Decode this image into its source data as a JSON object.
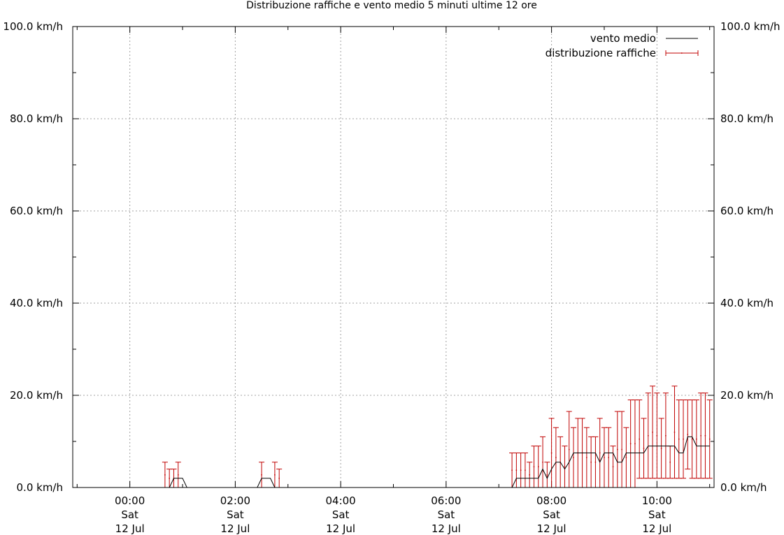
{
  "chart_data": {
    "type": "line",
    "title": "Distribuzione raffiche e vento medio 5 minuti ultime 12 ore",
    "x_unit": "minutes relative to Sat 12 Jul 00:00",
    "xlim": [
      -65,
      665
    ],
    "ylim": [
      0,
      100
    ],
    "grid": true,
    "legend_position": "top-right",
    "yticks": [
      {
        "value": 0,
        "label": "0.0 km/h"
      },
      {
        "value": 20,
        "label": "20.0 km/h"
      },
      {
        "value": 40,
        "label": "40.0 km/h"
      },
      {
        "value": 60,
        "label": "60.0 km/h"
      },
      {
        "value": 80,
        "label": "80.0 km/h"
      },
      {
        "value": 100,
        "label": "100.0 km/h"
      }
    ],
    "xticks": [
      {
        "value": 0,
        "time": "00:00",
        "day": "Sat",
        "date": "12 Jul"
      },
      {
        "value": 120,
        "time": "02:00",
        "day": "Sat",
        "date": "12 Jul"
      },
      {
        "value": 240,
        "time": "04:00",
        "day": "Sat",
        "date": "12 Jul"
      },
      {
        "value": 360,
        "time": "06:00",
        "day": "Sat",
        "date": "12 Jul"
      },
      {
        "value": 480,
        "time": "08:00",
        "day": "Sat",
        "date": "12 Jul"
      },
      {
        "value": 600,
        "time": "10:00",
        "day": "Sat",
        "date": "12 Jul"
      }
    ],
    "series": [
      {
        "name": "vento medio",
        "color": "#000000",
        "x": [
          -60,
          40,
          45,
          50,
          60,
          65,
          70,
          145,
          150,
          160,
          165,
          170,
          435,
          440,
          445,
          450,
          460,
          465,
          470,
          475,
          480,
          485,
          490,
          495,
          500,
          505,
          510,
          515,
          520,
          525,
          530,
          535,
          540,
          545,
          550,
          555,
          560,
          565,
          570,
          575,
          580,
          585,
          590,
          595,
          600,
          605,
          610,
          615,
          620,
          625,
          630,
          635,
          640,
          645,
          650,
          655,
          660
        ],
        "y": [
          0,
          0,
          0,
          2,
          2,
          0,
          0,
          0,
          2,
          2,
          0,
          0,
          0,
          2,
          2,
          2,
          2,
          2,
          4,
          2,
          4,
          5.5,
          5.5,
          4,
          5.5,
          7.5,
          7.5,
          7.5,
          7.5,
          7.5,
          7.5,
          5.5,
          7.5,
          7.5,
          7.5,
          5.5,
          5.5,
          7.5,
          7.5,
          7.5,
          7.5,
          7.5,
          9,
          9,
          9,
          9,
          9,
          9,
          9,
          7.5,
          7.5,
          11,
          11,
          9,
          9,
          9,
          9
        ]
      },
      {
        "name": "distribuzione raffiche",
        "color": "#c00000",
        "x": [
          40,
          45,
          50,
          55,
          150,
          165,
          170,
          435,
          440,
          445,
          450,
          455,
          460,
          465,
          470,
          475,
          480,
          485,
          490,
          495,
          500,
          505,
          510,
          515,
          520,
          525,
          530,
          535,
          540,
          545,
          550,
          555,
          560,
          565,
          570,
          575,
          580,
          585,
          590,
          595,
          600,
          605,
          610,
          615,
          620,
          625,
          630,
          635,
          640,
          645,
          650,
          655,
          660
        ],
        "y_low": [
          0,
          0,
          0,
          0,
          0,
          0,
          0,
          0,
          0,
          0,
          0,
          0,
          0,
          0,
          0,
          0,
          0,
          0,
          0,
          0,
          0,
          0,
          0,
          0,
          0,
          0,
          0,
          0,
          0,
          0,
          0,
          0,
          0,
          0,
          0,
          0,
          2,
          2,
          2,
          2,
          2,
          2,
          2,
          2,
          2,
          2,
          2,
          4,
          2,
          2,
          2,
          2,
          2
        ],
        "y_high": [
          5.5,
          4,
          4,
          5.5,
          5.5,
          5.5,
          4,
          7.5,
          7.5,
          7.5,
          7.5,
          5.5,
          9,
          9,
          11,
          5.5,
          15,
          13,
          11,
          9,
          16.5,
          13,
          15,
          15,
          13,
          11,
          11,
          15,
          13,
          13,
          9,
          16.5,
          16.5,
          13,
          19,
          19,
          19,
          15,
          20.5,
          22,
          20.5,
          15,
          20.5,
          9,
          22,
          19,
          19,
          19,
          19,
          19,
          20.5,
          20.5,
          19
        ]
      }
    ]
  }
}
